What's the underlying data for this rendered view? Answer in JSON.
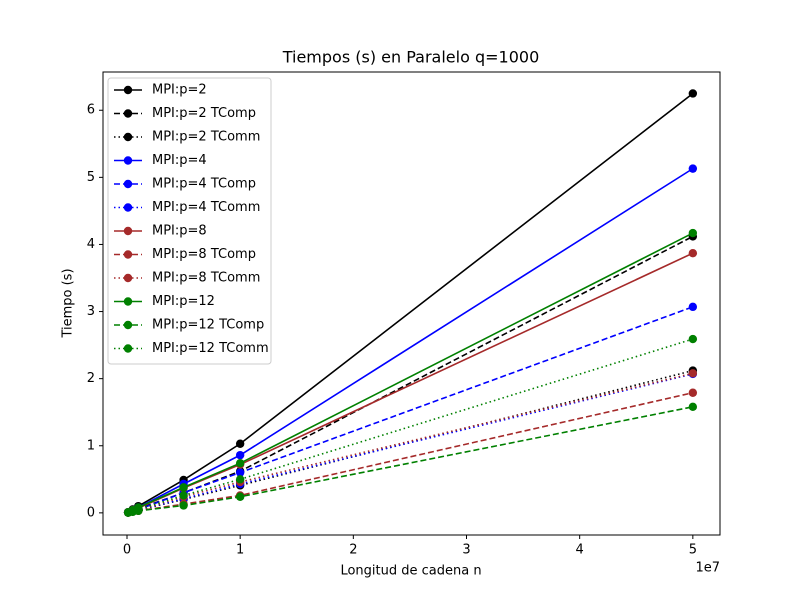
{
  "chart_data": {
    "type": "line",
    "title": "Tiempos (s) en Paralelo q=1000",
    "x_label": "Longitud de cadena n",
    "y_label": "Tiempo (s)",
    "x_offset_label": "1e7",
    "x": [
      100000,
      500000,
      1000000,
      5000000,
      10000000,
      50000000
    ],
    "xlim": [
      -2120000,
      52400000
    ],
    "xticks": [
      {
        "value": 0,
        "label": "0"
      },
      {
        "value": 10000000,
        "label": "1"
      },
      {
        "value": 20000000,
        "label": "2"
      },
      {
        "value": 30000000,
        "label": "3"
      },
      {
        "value": 40000000,
        "label": "4"
      },
      {
        "value": 50000000,
        "label": "5"
      }
    ],
    "ylim": [
      -0.33,
      6.57
    ],
    "yticks": [
      0,
      1,
      2,
      3,
      4,
      5,
      6
    ],
    "grid": false,
    "legend": "upper left",
    "series": [
      {
        "name": "MPI:p=2",
        "color": "#000000",
        "linestyle": "solid",
        "values": [
          0.01,
          0.05,
          0.1,
          0.49,
          1.03,
          6.25
        ]
      },
      {
        "name": "MPI:p=2 TComp",
        "color": "#000000",
        "linestyle": "dashed",
        "values": [
          0.005,
          0.03,
          0.06,
          0.3,
          0.62,
          4.12
        ]
      },
      {
        "name": "MPI:p=2 TComm",
        "color": "#000000",
        "linestyle": "dotted",
        "values": [
          0.005,
          0.02,
          0.04,
          0.2,
          0.41,
          2.12
        ]
      },
      {
        "name": "MPI:p=4",
        "color": "#0000ff",
        "linestyle": "solid",
        "values": [
          0.01,
          0.04,
          0.08,
          0.43,
          0.86,
          5.13
        ]
      },
      {
        "name": "MPI:p=4 TComp",
        "color": "#0000ff",
        "linestyle": "dashed",
        "values": [
          0.005,
          0.03,
          0.05,
          0.3,
          0.6,
          3.07
        ]
      },
      {
        "name": "MPI:p=4 TComm",
        "color": "#0000ff",
        "linestyle": "dotted",
        "values": [
          0.004,
          0.02,
          0.04,
          0.21,
          0.43,
          2.07
        ]
      },
      {
        "name": "MPI:p=8",
        "color": "#a52a2a",
        "linestyle": "solid",
        "values": [
          0.01,
          0.04,
          0.07,
          0.37,
          0.72,
          3.87
        ]
      },
      {
        "name": "MPI:p=8 TComp",
        "color": "#a52a2a",
        "linestyle": "dashed",
        "values": [
          0.003,
          0.02,
          0.03,
          0.13,
          0.26,
          1.79
        ]
      },
      {
        "name": "MPI:p=8 TComm",
        "color": "#a52a2a",
        "linestyle": "dotted",
        "values": [
          0.004,
          0.02,
          0.04,
          0.24,
          0.46,
          2.08
        ]
      },
      {
        "name": "MPI:p=12",
        "color": "#008000",
        "linestyle": "solid",
        "values": [
          0.01,
          0.04,
          0.08,
          0.38,
          0.74,
          4.17
        ]
      },
      {
        "name": "MPI:p=12 TComp",
        "color": "#008000",
        "linestyle": "dashed",
        "values": [
          0.003,
          0.015,
          0.03,
          0.11,
          0.24,
          1.58
        ]
      },
      {
        "name": "MPI:p=12 TComm",
        "color": "#008000",
        "linestyle": "dotted",
        "values": [
          0.005,
          0.02,
          0.05,
          0.26,
          0.5,
          2.59
        ]
      }
    ]
  }
}
